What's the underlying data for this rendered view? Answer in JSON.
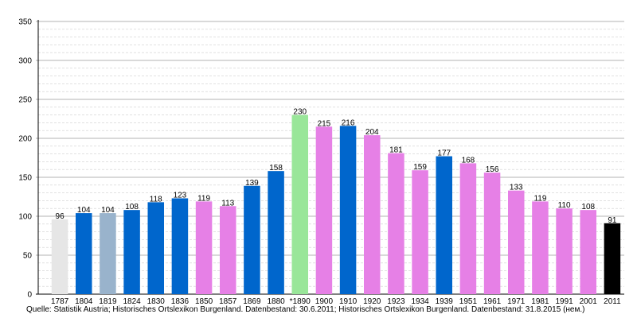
{
  "chart_data": {
    "type": "bar",
    "categories": [
      "1787",
      "1804",
      "1819",
      "1824",
      "1830",
      "1836",
      "1850",
      "1857",
      "1869",
      "1880",
      "*1890",
      "1900",
      "1910",
      "1920",
      "1923",
      "1934",
      "1939",
      "1951",
      "1961",
      "1971",
      "1981",
      "1991",
      "2001",
      "2011"
    ],
    "values": [
      96,
      104,
      104,
      108,
      118,
      123,
      119,
      113,
      139,
      158,
      230,
      215,
      216,
      204,
      181,
      159,
      177,
      168,
      156,
      133,
      119,
      110,
      108,
      91
    ],
    "colors": [
      "#e6e6e6",
      "#0066cc",
      "#99b3cc",
      "#0066cc",
      "#0066cc",
      "#0066cc",
      "#e680e6",
      "#e680e6",
      "#0066cc",
      "#0066cc",
      "#99e699",
      "#e680e6",
      "#0066cc",
      "#e680e6",
      "#e680e6",
      "#e680e6",
      "#0066cc",
      "#e680e6",
      "#e680e6",
      "#e680e6",
      "#e680e6",
      "#e680e6",
      "#e680e6",
      "#000000"
    ],
    "ylim": [
      0,
      350
    ],
    "yticks": [
      0,
      50,
      100,
      150,
      200,
      250,
      300,
      350
    ],
    "minor_step": 10,
    "grid": true,
    "title": "",
    "xlabel": "",
    "ylabel": ""
  },
  "source": "Quelle: Statistik Austria; Historisches Ortslexikon Burgenland. Datenbestand: 30.6.2011; Historisches Ortslexikon Burgenland. Datenbestand: 31.8.2015 (нем.)"
}
